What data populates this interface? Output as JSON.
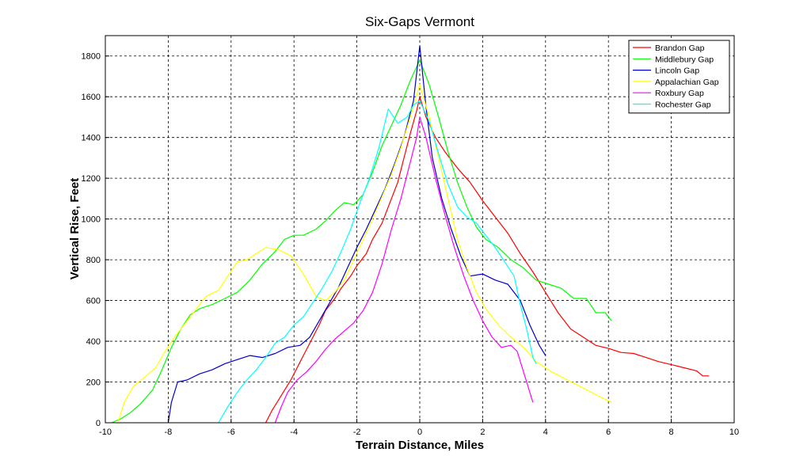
{
  "chart_data": {
    "type": "line",
    "title": "Six-Gaps Vermont",
    "xlabel": "Terrain Distance, Miles",
    "ylabel": "Vertical Rise, Feet",
    "xlim": [
      -10,
      10
    ],
    "ylim": [
      0,
      1900
    ],
    "xticks": [
      -10,
      -8,
      -6,
      -4,
      -2,
      0,
      2,
      4,
      6,
      8,
      10
    ],
    "yticks": [
      0,
      200,
      400,
      600,
      800,
      1000,
      1200,
      1400,
      1600,
      1800
    ],
    "grid": true,
    "legend_position": "top-right",
    "series": [
      {
        "name": "Brandon Gap",
        "color": "#ff0000",
        "points": [
          [
            -4.9,
            0
          ],
          [
            -4.7,
            60
          ],
          [
            -4.5,
            110
          ],
          [
            -4.3,
            160
          ],
          [
            -4.1,
            210
          ],
          [
            -3.8,
            300
          ],
          [
            -3.5,
            390
          ],
          [
            -3.2,
            480
          ],
          [
            -3.0,
            550
          ],
          [
            -2.7,
            610
          ],
          [
            -2.5,
            660
          ],
          [
            -2.2,
            720
          ],
          [
            -2.0,
            770
          ],
          [
            -1.7,
            830
          ],
          [
            -1.5,
            900
          ],
          [
            -1.2,
            980
          ],
          [
            -1.0,
            1060
          ],
          [
            -0.7,
            1180
          ],
          [
            -0.5,
            1300
          ],
          [
            -0.3,
            1420
          ],
          [
            -0.1,
            1530
          ],
          [
            0.0,
            1600
          ],
          [
            0.2,
            1500
          ],
          [
            0.5,
            1400
          ],
          [
            0.8,
            1330
          ],
          [
            1.2,
            1250
          ],
          [
            1.6,
            1180
          ],
          [
            2.0,
            1090
          ],
          [
            2.4,
            1010
          ],
          [
            2.8,
            930
          ],
          [
            3.2,
            830
          ],
          [
            3.6,
            740
          ],
          [
            4.0,
            640
          ],
          [
            4.4,
            540
          ],
          [
            4.8,
            460
          ],
          [
            5.2,
            420
          ],
          [
            5.6,
            380
          ],
          [
            6.0,
            365
          ],
          [
            6.4,
            345
          ],
          [
            6.8,
            340
          ],
          [
            7.2,
            320
          ],
          [
            7.6,
            300
          ],
          [
            8.0,
            285
          ],
          [
            8.4,
            270
          ],
          [
            8.8,
            255
          ],
          [
            9.0,
            230
          ],
          [
            9.2,
            230
          ]
        ]
      },
      {
        "name": "Middlebury Gap",
        "color": "#00ff00",
        "points": [
          [
            -9.8,
            0
          ],
          [
            -9.5,
            20
          ],
          [
            -9.2,
            50
          ],
          [
            -8.9,
            90
          ],
          [
            -8.5,
            160
          ],
          [
            -8.2,
            260
          ],
          [
            -7.9,
            370
          ],
          [
            -7.6,
            460
          ],
          [
            -7.3,
            530
          ],
          [
            -7.0,
            560
          ],
          [
            -6.6,
            580
          ],
          [
            -6.2,
            610
          ],
          [
            -5.8,
            640
          ],
          [
            -5.4,
            700
          ],
          [
            -5.0,
            780
          ],
          [
            -4.6,
            840
          ],
          [
            -4.3,
            900
          ],
          [
            -4.0,
            920
          ],
          [
            -3.7,
            920
          ],
          [
            -3.3,
            950
          ],
          [
            -3.0,
            990
          ],
          [
            -2.7,
            1040
          ],
          [
            -2.4,
            1080
          ],
          [
            -2.1,
            1070
          ],
          [
            -1.8,
            1120
          ],
          [
            -1.5,
            1230
          ],
          [
            -1.2,
            1360
          ],
          [
            -0.9,
            1460
          ],
          [
            -0.6,
            1560
          ],
          [
            -0.3,
            1680
          ],
          [
            0.0,
            1780
          ],
          [
            0.3,
            1660
          ],
          [
            0.6,
            1500
          ],
          [
            0.9,
            1330
          ],
          [
            1.2,
            1180
          ],
          [
            1.5,
            1060
          ],
          [
            1.8,
            960
          ],
          [
            2.1,
            900
          ],
          [
            2.5,
            860
          ],
          [
            2.9,
            800
          ],
          [
            3.3,
            760
          ],
          [
            3.7,
            700
          ],
          [
            4.1,
            680
          ],
          [
            4.5,
            660
          ],
          [
            4.9,
            610
          ],
          [
            5.3,
            610
          ],
          [
            5.6,
            540
          ],
          [
            5.9,
            540
          ],
          [
            6.1,
            500
          ]
        ]
      },
      {
        "name": "Lincoln Gap",
        "color": "#0000cc",
        "points": [
          [
            -8.0,
            0
          ],
          [
            -7.9,
            100
          ],
          [
            -7.7,
            200
          ],
          [
            -7.4,
            210
          ],
          [
            -7.0,
            240
          ],
          [
            -6.6,
            260
          ],
          [
            -6.2,
            290
          ],
          [
            -5.8,
            310
          ],
          [
            -5.4,
            330
          ],
          [
            -5.0,
            320
          ],
          [
            -4.6,
            340
          ],
          [
            -4.2,
            370
          ],
          [
            -3.8,
            380
          ],
          [
            -3.5,
            420
          ],
          [
            -3.2,
            500
          ],
          [
            -2.9,
            580
          ],
          [
            -2.6,
            660
          ],
          [
            -2.3,
            760
          ],
          [
            -2.0,
            860
          ],
          [
            -1.7,
            950
          ],
          [
            -1.4,
            1050
          ],
          [
            -1.1,
            1150
          ],
          [
            -0.8,
            1270
          ],
          [
            -0.5,
            1400
          ],
          [
            -0.2,
            1580
          ],
          [
            0.0,
            1850
          ],
          [
            0.2,
            1550
          ],
          [
            0.4,
            1300
          ],
          [
            0.7,
            1100
          ],
          [
            1.0,
            950
          ],
          [
            1.3,
            820
          ],
          [
            1.6,
            720
          ],
          [
            2.0,
            730
          ],
          [
            2.4,
            700
          ],
          [
            2.8,
            680
          ],
          [
            3.2,
            600
          ],
          [
            3.5,
            480
          ],
          [
            3.8,
            380
          ],
          [
            4.0,
            330
          ]
        ]
      },
      {
        "name": "Appalachian Gap",
        "color": "#ffff00",
        "points": [
          [
            -9.6,
            0
          ],
          [
            -9.4,
            100
          ],
          [
            -9.1,
            180
          ],
          [
            -8.7,
            230
          ],
          [
            -8.4,
            270
          ],
          [
            -8.1,
            350
          ],
          [
            -7.8,
            420
          ],
          [
            -7.5,
            480
          ],
          [
            -7.1,
            560
          ],
          [
            -6.8,
            620
          ],
          [
            -6.4,
            650
          ],
          [
            -6.1,
            720
          ],
          [
            -5.8,
            790
          ],
          [
            -5.5,
            800
          ],
          [
            -5.2,
            830
          ],
          [
            -4.9,
            860
          ],
          [
            -4.5,
            850
          ],
          [
            -4.1,
            820
          ],
          [
            -3.7,
            730
          ],
          [
            -3.3,
            620
          ],
          [
            -3.0,
            600
          ],
          [
            -2.7,
            640
          ],
          [
            -2.4,
            700
          ],
          [
            -2.1,
            800
          ],
          [
            -1.8,
            900
          ],
          [
            -1.5,
            1000
          ],
          [
            -1.2,
            1110
          ],
          [
            -0.9,
            1220
          ],
          [
            -0.6,
            1350
          ],
          [
            -0.3,
            1500
          ],
          [
            0.0,
            1660
          ],
          [
            0.3,
            1500
          ],
          [
            0.6,
            1300
          ],
          [
            0.9,
            1100
          ],
          [
            1.2,
            900
          ],
          [
            1.5,
            760
          ],
          [
            1.8,
            640
          ],
          [
            2.1,
            560
          ],
          [
            2.5,
            480
          ],
          [
            2.9,
            420
          ],
          [
            3.3,
            370
          ],
          [
            3.7,
            300
          ],
          [
            4.2,
            250
          ],
          [
            4.7,
            210
          ],
          [
            5.2,
            170
          ],
          [
            5.7,
            130
          ],
          [
            6.1,
            100
          ]
        ]
      },
      {
        "name": "Roxbury Gap",
        "color": "#ff00ff",
        "points": [
          [
            -4.6,
            0
          ],
          [
            -4.4,
            80
          ],
          [
            -4.2,
            150
          ],
          [
            -3.9,
            210
          ],
          [
            -3.6,
            250
          ],
          [
            -3.3,
            300
          ],
          [
            -3.0,
            360
          ],
          [
            -2.7,
            410
          ],
          [
            -2.4,
            450
          ],
          [
            -2.1,
            490
          ],
          [
            -1.8,
            550
          ],
          [
            -1.5,
            640
          ],
          [
            -1.2,
            780
          ],
          [
            -0.9,
            950
          ],
          [
            -0.6,
            1100
          ],
          [
            -0.3,
            1280
          ],
          [
            -0.1,
            1400
          ],
          [
            0.0,
            1500
          ],
          [
            0.2,
            1400
          ],
          [
            0.5,
            1200
          ],
          [
            0.8,
            1020
          ],
          [
            1.1,
            860
          ],
          [
            1.4,
            720
          ],
          [
            1.7,
            600
          ],
          [
            2.0,
            500
          ],
          [
            2.3,
            420
          ],
          [
            2.6,
            370
          ],
          [
            2.9,
            380
          ],
          [
            3.1,
            350
          ],
          [
            3.3,
            250
          ],
          [
            3.6,
            100
          ]
        ]
      },
      {
        "name": "Rochester Gap",
        "color": "#00ffff",
        "points": [
          [
            -6.4,
            0
          ],
          [
            -6.1,
            80
          ],
          [
            -5.8,
            150
          ],
          [
            -5.5,
            210
          ],
          [
            -5.2,
            260
          ],
          [
            -4.9,
            320
          ],
          [
            -4.6,
            390
          ],
          [
            -4.3,
            420
          ],
          [
            -4.0,
            480
          ],
          [
            -3.7,
            520
          ],
          [
            -3.4,
            590
          ],
          [
            -3.1,
            660
          ],
          [
            -2.8,
            740
          ],
          [
            -2.5,
            840
          ],
          [
            -2.2,
            950
          ],
          [
            -1.9,
            1080
          ],
          [
            -1.6,
            1200
          ],
          [
            -1.3,
            1350
          ],
          [
            -1.0,
            1540
          ],
          [
            -0.7,
            1470
          ],
          [
            -0.4,
            1500
          ],
          [
            -0.2,
            1560
          ],
          [
            0.0,
            1580
          ],
          [
            0.3,
            1480
          ],
          [
            0.6,
            1320
          ],
          [
            0.9,
            1170
          ],
          [
            1.2,
            1060
          ],
          [
            1.5,
            1010
          ],
          [
            1.8,
            980
          ],
          [
            2.1,
            920
          ],
          [
            2.4,
            860
          ],
          [
            2.7,
            790
          ],
          [
            3.0,
            720
          ],
          [
            3.2,
            580
          ],
          [
            3.4,
            460
          ],
          [
            3.6,
            320
          ],
          [
            3.7,
            290
          ]
        ]
      }
    ]
  }
}
